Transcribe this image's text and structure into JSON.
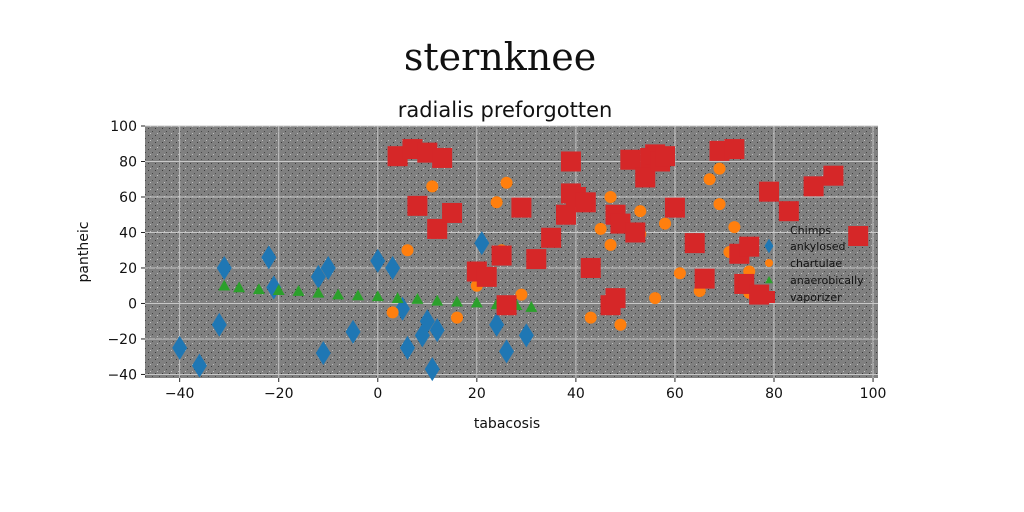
{
  "figure": {
    "suptitle": "sternknee"
  },
  "chart_data": {
    "type": "scatter",
    "title": "radialis preforgotten",
    "xlabel": "tabacosis",
    "ylabel": "pantheic",
    "xlim": [
      -47,
      101
    ],
    "ylim": [
      -42,
      100
    ],
    "xticks": [
      -40,
      -20,
      0,
      20,
      40,
      60,
      80,
      100
    ],
    "yticks": [
      -40,
      -20,
      0,
      20,
      40,
      60,
      80,
      100
    ],
    "xtick_labels": [
      "−40",
      "−20",
      "0",
      "20",
      "40",
      "60",
      "80",
      "100"
    ],
    "ytick_labels": [
      "−40",
      "−20",
      "0",
      "20",
      "40",
      "60",
      "80",
      "100"
    ],
    "grid": true,
    "plot_background": "#808080",
    "legend": {
      "title": "Chimps",
      "placement": "center-right",
      "entries": [
        "ankylosed",
        "chartulae",
        "anaerobically",
        "vaporizer"
      ]
    },
    "series": [
      {
        "name": "ankylosed",
        "marker": "diamond",
        "color": "#1f77b4",
        "points": [
          [
            -40,
            -25
          ],
          [
            -36,
            -35
          ],
          [
            -31,
            20
          ],
          [
            -32,
            -12
          ],
          [
            -22,
            26
          ],
          [
            -21,
            9
          ],
          [
            -12,
            15
          ],
          [
            -10,
            20
          ],
          [
            -11,
            -28
          ],
          [
            -5,
            -16
          ],
          [
            0,
            24
          ],
          [
            3,
            20
          ],
          [
            5,
            -3
          ],
          [
            6,
            -25
          ],
          [
            9,
            -18
          ],
          [
            10,
            -10
          ],
          [
            11,
            -37
          ],
          [
            12,
            -15
          ],
          [
            21,
            34
          ],
          [
            24,
            -12
          ],
          [
            26,
            -27
          ],
          [
            30,
            -18
          ]
        ]
      },
      {
        "name": "chartulae",
        "marker": "circle",
        "color": "#ff7f0e",
        "points": [
          [
            3,
            -5
          ],
          [
            6,
            30
          ],
          [
            11,
            66
          ],
          [
            16,
            -8
          ],
          [
            20,
            15
          ],
          [
            20,
            10
          ],
          [
            24,
            57
          ],
          [
            25,
            30
          ],
          [
            26,
            68
          ],
          [
            29,
            5
          ],
          [
            43,
            -8
          ],
          [
            45,
            42
          ],
          [
            47,
            33
          ],
          [
            47,
            60
          ],
          [
            49,
            -12
          ],
          [
            53,
            52
          ],
          [
            53,
            39
          ],
          [
            56,
            3
          ],
          [
            58,
            45
          ],
          [
            61,
            17
          ],
          [
            65,
            7
          ],
          [
            67,
            70
          ],
          [
            69,
            76
          ],
          [
            69,
            56
          ],
          [
            71,
            29
          ],
          [
            72,
            43
          ],
          [
            75,
            18
          ],
          [
            75,
            6
          ]
        ]
      },
      {
        "name": "anaerobically",
        "marker": "triangle",
        "color": "#2ca02c",
        "points": [
          [
            -31,
            10
          ],
          [
            -28,
            9
          ],
          [
            -24,
            8
          ],
          [
            -20,
            7.5
          ],
          [
            -16,
            7
          ],
          [
            -12,
            6
          ],
          [
            -8,
            5
          ],
          [
            -4,
            4.5
          ],
          [
            0,
            4
          ],
          [
            4,
            3
          ],
          [
            8,
            2.5
          ],
          [
            12,
            1.5
          ],
          [
            16,
            1
          ],
          [
            20,
            0.5
          ],
          [
            24,
            -0.5
          ],
          [
            28,
            -1
          ],
          [
            31,
            -2
          ]
        ]
      },
      {
        "name": "vaporizer",
        "marker": "square",
        "color": "#d62728",
        "points": [
          [
            4,
            83
          ],
          [
            7,
            87
          ],
          [
            10,
            85
          ],
          [
            13,
            82
          ],
          [
            8,
            55
          ],
          [
            12,
            42
          ],
          [
            15,
            51
          ],
          [
            20,
            18
          ],
          [
            22,
            15
          ],
          [
            25,
            27
          ],
          [
            26,
            -1
          ],
          [
            29,
            54
          ],
          [
            32,
            25
          ],
          [
            35,
            37
          ],
          [
            38,
            50
          ],
          [
            39,
            62
          ],
          [
            40,
            60
          ],
          [
            42,
            57
          ],
          [
            39,
            80
          ],
          [
            43,
            20
          ],
          [
            47,
            -1
          ],
          [
            48,
            3
          ],
          [
            48,
            50
          ],
          [
            49,
            45
          ],
          [
            52,
            40
          ],
          [
            51,
            81
          ],
          [
            55,
            82
          ],
          [
            56,
            84
          ],
          [
            54,
            71
          ],
          [
            57,
            80
          ],
          [
            60,
            54
          ],
          [
            64,
            34
          ],
          [
            66,
            14
          ],
          [
            69,
            86
          ],
          [
            72,
            87
          ],
          [
            73,
            28
          ],
          [
            74,
            11
          ],
          [
            75,
            32
          ],
          [
            77,
            5
          ],
          [
            79,
            63
          ],
          [
            83,
            52
          ],
          [
            88,
            66
          ],
          [
            92,
            72
          ],
          [
            58,
            83
          ],
          [
            97,
            38
          ]
        ]
      }
    ]
  }
}
